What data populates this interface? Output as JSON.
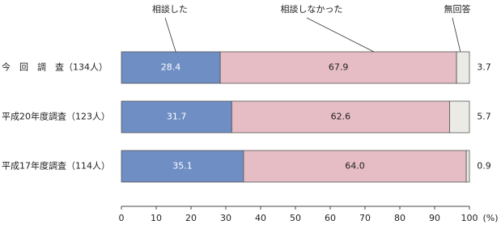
{
  "chart_data": {
    "type": "stacked_bar_horizontal",
    "categories": [
      "今　回　調　査（134人）",
      "平成20年度調査（123人）",
      "平成17年度調査（114人）"
    ],
    "series": [
      {
        "name": "相談した",
        "color": "#6e8ec4",
        "values": [
          28.4,
          31.7,
          35.1
        ]
      },
      {
        "name": "相談しなかった",
        "color": "#e6bdc5",
        "values": [
          67.9,
          62.6,
          64.0
        ],
        "value_labels": [
          "67.9",
          "62.6",
          "64.0"
        ]
      },
      {
        "name": "無回答",
        "color": "#ebebe6",
        "values": [
          3.7,
          5.7,
          0.9
        ]
      }
    ],
    "xlim": [
      0,
      100
    ],
    "xticks": [
      0,
      10,
      20,
      30,
      40,
      50,
      60,
      70,
      80,
      90,
      100
    ],
    "x_label": "(%)"
  }
}
